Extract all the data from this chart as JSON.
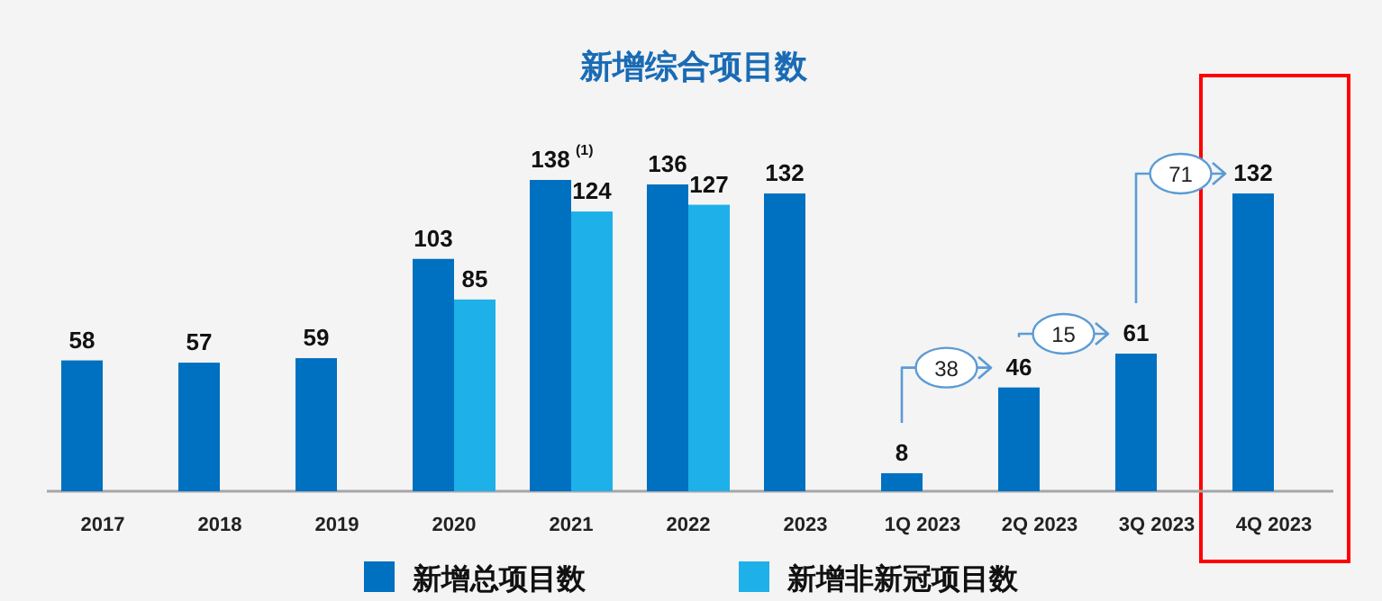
{
  "chart_data": {
    "type": "bar",
    "title": "新增综合项目数",
    "categories": [
      "2017",
      "2018",
      "2019",
      "2020",
      "2021",
      "2022",
      "2023",
      "1Q 2023",
      "2Q 2023",
      "3Q 2023",
      "4Q 2023"
    ],
    "series": [
      {
        "name": "新增总项目数",
        "color": "#0070c0",
        "values": [
          58,
          57,
          59,
          103,
          138,
          136,
          132,
          8,
          46,
          61,
          132
        ]
      },
      {
        "name": "新增非新冠项目数",
        "color": "#1eb0e8",
        "values": [
          null,
          null,
          null,
          85,
          124,
          127,
          null,
          null,
          null,
          null,
          null
        ]
      }
    ],
    "data_labels": true,
    "legend": "bottom",
    "annotations": [
      {
        "text": "(1)",
        "x": "2021",
        "y": 138
      },
      "38",
      "15",
      "71"
    ]
  }
}
